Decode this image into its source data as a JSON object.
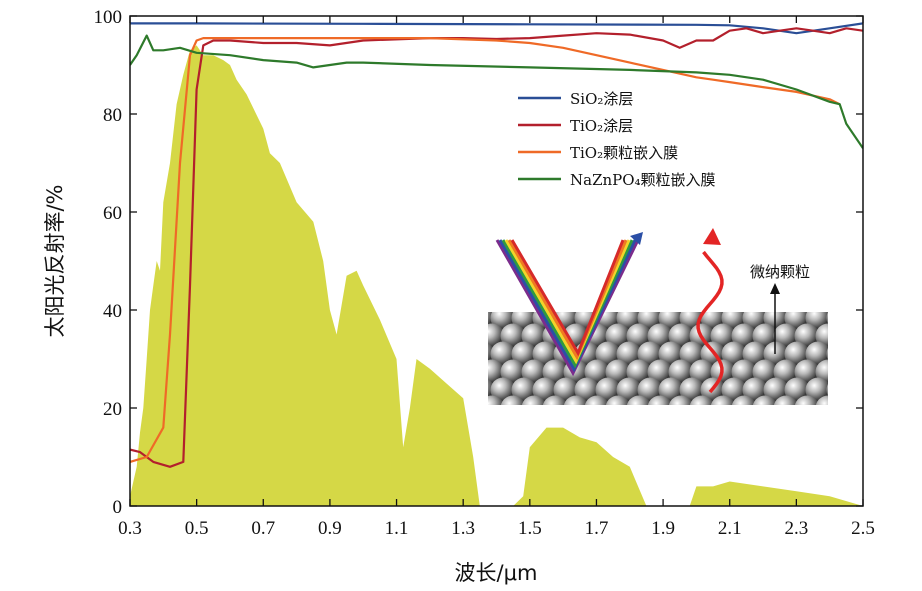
{
  "chart_data": {
    "type": "line",
    "xlabel": "波长/μm",
    "ylabel": "太阳光反射率/%",
    "xlim": [
      0.3,
      2.5
    ],
    "ylim": [
      0,
      100
    ],
    "x_ticks": [
      "0.3",
      "0.5",
      "0.7",
      "0.9",
      "1.1",
      "1.3",
      "1.5",
      "1.7",
      "1.9",
      "2.1",
      "2.3",
      "2.5"
    ],
    "y_ticks": [
      "0",
      "20",
      "40",
      "60",
      "80",
      "100"
    ],
    "grid": false,
    "legend_position": "upper-right",
    "legend": [
      {
        "label": "SiO₂涂层",
        "color": "#2a4e96"
      },
      {
        "label": "TiO₂涂层",
        "color": "#b3202c"
      },
      {
        "label": "TiO₂颗粒嵌入膜",
        "color": "#ef6a27"
      },
      {
        "label": "NaZnPO₄颗粒嵌入膜",
        "color": "#2e7a2b"
      }
    ],
    "series": [
      {
        "color": "#2a4e96",
        "x": [
          0.3,
          0.5,
          1.0,
          1.5,
          2.0,
          2.1,
          2.2,
          2.3,
          2.4,
          2.5
        ],
        "y": [
          98.5,
          98.5,
          98.4,
          98.3,
          98.2,
          98.1,
          97.5,
          96.5,
          97.5,
          98.5
        ]
      },
      {
        "color": "#b3202c",
        "x": [
          0.3,
          0.33,
          0.37,
          0.42,
          0.46,
          0.48,
          0.5,
          0.52,
          0.55,
          0.6,
          0.7,
          0.8,
          0.9,
          1.0,
          1.2,
          1.3,
          1.4,
          1.5,
          1.6,
          1.7,
          1.8,
          1.9,
          1.95,
          2.0,
          2.05,
          2.1,
          2.15,
          2.2,
          2.25,
          2.3,
          2.35,
          2.4,
          2.45,
          2.5
        ],
        "y": [
          11.5,
          11,
          9,
          8,
          9,
          45,
          85,
          94,
          95,
          95,
          94.5,
          94.5,
          94,
          95,
          95.5,
          95.5,
          95.3,
          95.5,
          96,
          96.5,
          96.2,
          95,
          93.5,
          95,
          95,
          97,
          97.5,
          96.5,
          97,
          97.5,
          97,
          96.5,
          97.5,
          97
        ]
      },
      {
        "color": "#ef6a27",
        "x": [
          0.3,
          0.35,
          0.4,
          0.42,
          0.45,
          0.48,
          0.5,
          0.52,
          0.55,
          0.6,
          0.7,
          0.8,
          1.0,
          1.2,
          1.4,
          1.5,
          1.6,
          1.7,
          1.8,
          1.9,
          2.0,
          2.05,
          2.1,
          2.2,
          2.3,
          2.4,
          2.43
        ],
        "y": [
          9,
          10,
          16,
          35,
          70,
          92,
          95,
          95.5,
          95.5,
          95.5,
          95.5,
          95.5,
          95.5,
          95.5,
          95,
          94.5,
          93.5,
          92,
          90.5,
          89,
          87.5,
          87,
          86.5,
          85.5,
          84.5,
          83,
          82
        ]
      },
      {
        "color": "#2e7a2b",
        "x": [
          0.3,
          0.32,
          0.35,
          0.37,
          0.4,
          0.45,
          0.5,
          0.6,
          0.7,
          0.8,
          0.85,
          0.9,
          0.95,
          1.0,
          1.2,
          1.5,
          1.8,
          2.0,
          2.1,
          2.2,
          2.3,
          2.4,
          2.43,
          2.45,
          2.5
        ],
        "y": [
          90,
          92,
          96,
          93,
          93,
          93.5,
          92.5,
          92,
          91,
          90.5,
          89.5,
          90,
          90.5,
          90.5,
          90,
          89.5,
          89,
          88.5,
          88,
          87,
          85,
          82.5,
          82,
          78,
          73
        ]
      }
    ],
    "solar_spectrum": {
      "color": "#d5d846",
      "x": [
        0.3,
        0.32,
        0.33,
        0.34,
        0.35,
        0.36,
        0.37,
        0.38,
        0.39,
        0.4,
        0.42,
        0.44,
        0.46,
        0.48,
        0.5,
        0.52,
        0.55,
        0.58,
        0.6,
        0.62,
        0.65,
        0.7,
        0.72,
        0.75,
        0.8,
        0.85,
        0.88,
        0.9,
        0.92,
        0.95,
        0.98,
        1.0,
        1.05,
        1.1,
        1.12,
        1.14,
        1.16,
        1.2,
        1.25,
        1.3,
        1.33,
        1.35,
        1.4,
        1.45,
        1.48,
        1.5,
        1.55,
        1.6,
        1.65,
        1.7,
        1.75,
        1.8,
        1.85,
        1.9,
        1.95,
        1.98,
        2.0,
        2.05,
        2.1,
        2.2,
        2.3,
        2.4,
        2.5
      ],
      "y": [
        2,
        8,
        15,
        20,
        30,
        40,
        45,
        50,
        48,
        62,
        70,
        82,
        88,
        93,
        94,
        92,
        92,
        91,
        90,
        87,
        84,
        77,
        72,
        70,
        62,
        58,
        50,
        40,
        35,
        47,
        48,
        45,
        38,
        30,
        12,
        20,
        30,
        28,
        25,
        22,
        10,
        0,
        0,
        0,
        2,
        12,
        16,
        16,
        14,
        13,
        10,
        8,
        0,
        0,
        0,
        0,
        4,
        4,
        5,
        4,
        3,
        2,
        0
      ]
    },
    "inset": {
      "label": "微纳颗粒"
    }
  }
}
